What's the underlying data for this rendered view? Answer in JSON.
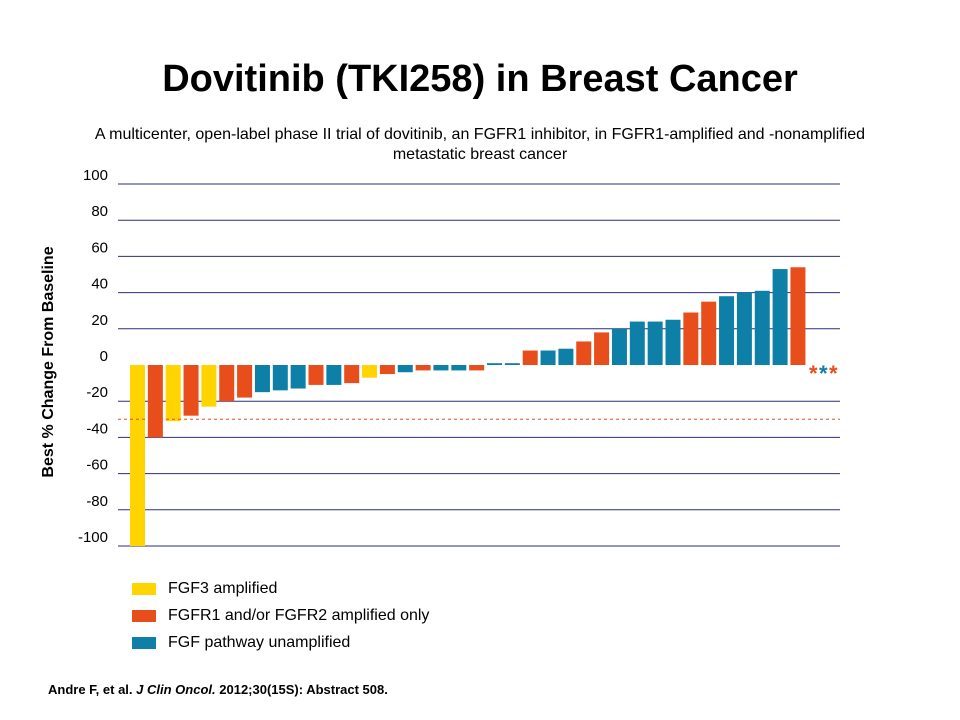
{
  "title": "Dovitinib (TKI258) in Breast Cancer",
  "subtitle": "A multicenter, open-label phase II trial of dovitinib, an FGFR1 inhibitor, in FGFR1-amplified and -nonamplified metastatic breast cancer",
  "citation": {
    "authors": "Andre F, et al.",
    "journal": "J Clin Oncol.",
    "rest": "2012;30(15S): Abstract 508."
  },
  "colors": {
    "fgf3": "#FFD400",
    "fgfr": "#E84E1B",
    "unamp": "#0E7FA6",
    "grid": "#2B2D7E",
    "threshold": "#E84E1B"
  },
  "legend": [
    {
      "label": "FGF3 amplified",
      "color": "#FFD400"
    },
    {
      "label": "FGFR1 and/or FGFR2 amplified only",
      "color": "#E84E1B"
    },
    {
      "label": "FGF pathway unamplified",
      "color": "#0E7FA6"
    }
  ],
  "chart_data": {
    "type": "bar",
    "ylabel": "Best % Change From Baseline",
    "xlabel": "",
    "ylim": [
      -100,
      100
    ],
    "yticks": [
      100,
      80,
      60,
      40,
      20,
      0,
      -20,
      -40,
      -60,
      -80,
      -100
    ],
    "grid": true,
    "reference_line": -30,
    "series": [
      {
        "name": "FGF3 amplified",
        "key": "fgf3",
        "color": "#FFD400"
      },
      {
        "name": "FGFR1 and/or FGFR2 amplified only",
        "key": "fgfr",
        "color": "#E84E1B"
      },
      {
        "name": "FGF pathway unamplified",
        "key": "unamp",
        "color": "#0E7FA6"
      }
    ],
    "bars": [
      {
        "value": -100,
        "group": "fgf3"
      },
      {
        "value": -40,
        "group": "fgfr"
      },
      {
        "value": -31,
        "group": "fgf3"
      },
      {
        "value": -28,
        "group": "fgfr"
      },
      {
        "value": -23,
        "group": "fgf3"
      },
      {
        "value": -20,
        "group": "fgfr"
      },
      {
        "value": -18,
        "group": "fgfr"
      },
      {
        "value": -15,
        "group": "unamp"
      },
      {
        "value": -14,
        "group": "unamp"
      },
      {
        "value": -13,
        "group": "unamp"
      },
      {
        "value": -11,
        "group": "fgfr"
      },
      {
        "value": -11,
        "group": "unamp"
      },
      {
        "value": -10,
        "group": "fgfr"
      },
      {
        "value": -7,
        "group": "fgf3"
      },
      {
        "value": -5,
        "group": "fgfr"
      },
      {
        "value": -4,
        "group": "unamp"
      },
      {
        "value": -3,
        "group": "fgfr"
      },
      {
        "value": -3,
        "group": "unamp"
      },
      {
        "value": -3,
        "group": "unamp"
      },
      {
        "value": -3,
        "group": "fgfr"
      },
      {
        "value": 1,
        "group": "unamp"
      },
      {
        "value": 1,
        "group": "unamp"
      },
      {
        "value": 8,
        "group": "fgfr"
      },
      {
        "value": 8,
        "group": "unamp"
      },
      {
        "value": 9,
        "group": "unamp"
      },
      {
        "value": 13,
        "group": "fgfr"
      },
      {
        "value": 18,
        "group": "fgfr"
      },
      {
        "value": 20,
        "group": "unamp"
      },
      {
        "value": 24,
        "group": "unamp"
      },
      {
        "value": 24,
        "group": "unamp"
      },
      {
        "value": 25,
        "group": "unamp"
      },
      {
        "value": 29,
        "group": "fgfr"
      },
      {
        "value": 35,
        "group": "fgfr"
      },
      {
        "value": 38,
        "group": "unamp"
      },
      {
        "value": 40,
        "group": "unamp"
      },
      {
        "value": 41,
        "group": "unamp"
      },
      {
        "value": 53,
        "group": "unamp"
      },
      {
        "value": 54,
        "group": "fgfr"
      }
    ],
    "markers": [
      {
        "text": "*",
        "group": "fgfr"
      },
      {
        "text": "*",
        "group": "unamp"
      },
      {
        "text": "*",
        "group": "fgfr"
      }
    ]
  }
}
